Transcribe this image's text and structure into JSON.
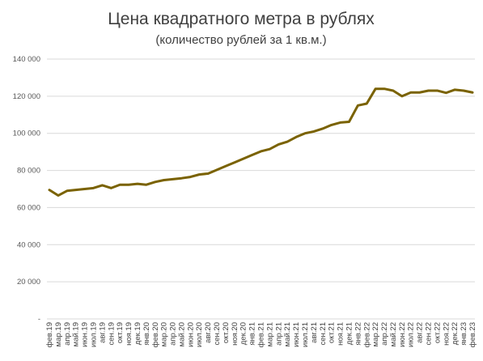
{
  "chart_data": {
    "type": "line",
    "title": "Цена квадратного метра в рублях",
    "subtitle": "(количество рублей за 1 кв.м.)",
    "xlabel": "",
    "ylabel": "",
    "ylim": [
      0,
      140000
    ],
    "yticks": [
      0,
      20000,
      40000,
      60000,
      80000,
      100000,
      120000,
      140000
    ],
    "ytick_labels": [
      "-",
      "20 000",
      "40 000",
      "60 000",
      "80 000",
      "100 000",
      "120 000",
      "140 000"
    ],
    "grid": true,
    "legend": "none",
    "categories": [
      "фев.19",
      "мар.19",
      "апр.19",
      "май.19",
      "июн.19",
      "июл.19",
      "авг.19",
      "сен.19",
      "окт.19",
      "ноя.19",
      "дек.19",
      "янв.20",
      "фев.20",
      "мар.20",
      "апр.20",
      "май.20",
      "июн.20",
      "июл.20",
      "авг.20",
      "сен.20",
      "окт.20",
      "ноя.20",
      "дек.20",
      "янв.21",
      "фев.21",
      "мар.21",
      "апр.21",
      "май.21",
      "июн.21",
      "июл.21",
      "авг.21",
      "сен.21",
      "окт.21",
      "ноя.21",
      "дек.21",
      "янв.22",
      "фев.22",
      "мар.22",
      "апр.22",
      "май.22",
      "июн.22",
      "июл.22",
      "авг.22",
      "сен.22",
      "окт.22",
      "ноя.22",
      "дек.22",
      "янв.23",
      "фев.23"
    ],
    "series": [
      {
        "color": "#7a6200",
        "values": [
          69500,
          66500,
          69000,
          69500,
          70000,
          70500,
          72000,
          70500,
          72300,
          72300,
          72800,
          72300,
          73800,
          74800,
          75300,
          75800,
          76500,
          77800,
          78300,
          80300,
          82300,
          84300,
          86300,
          88300,
          90300,
          91500,
          94000,
          95500,
          98000,
          100000,
          101000,
          102500,
          104500,
          105800,
          106200,
          115000,
          116000,
          124000,
          124000,
          123000,
          120000,
          122000,
          122000,
          123000,
          123000,
          121800,
          123500,
          123000,
          122000
        ]
      }
    ]
  }
}
